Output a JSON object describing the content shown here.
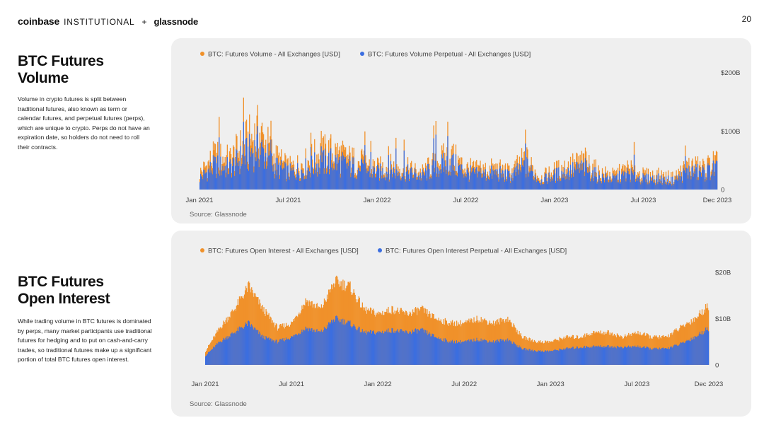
{
  "header": {
    "logo_coinbase": "coinbase",
    "logo_institutional": "INSTITUTIONAL",
    "logo_plus": "+",
    "logo_glassnode": "glassnode",
    "page_number": "20"
  },
  "sections": [
    {
      "title_line1": "BTC Futures",
      "title_line2": "Volume",
      "body": "Volume in crypto futures is split between traditional futures, also known as term or calendar futures, and perpetual futures (perps), which are unique to crypto. Perps do not have an expiration date, so holders do not need to roll their contracts."
    },
    {
      "title_line1": "BTC Futures",
      "title_line2": "Open Interest",
      "body": "While trading volume in BTC futures is dominated by perps, many market participants use traditional futures for hedging and to put on cash-and-carry trades, so traditional futures make up a significant portion of total BTC futures open interest."
    }
  ],
  "colors": {
    "orange": "#f0912a",
    "blue": "#3b6ee0"
  },
  "chart_data": [
    {
      "type": "area",
      "legend": [
        "BTC: Futures Volume - All Exchanges [USD]",
        "BTC: Futures Volume Perpetual - All Exchanges [USD]"
      ],
      "legend_position": "top-left",
      "source": "Source: Glassnode",
      "x_ticks": [
        "Jan 2021",
        "Jul 2021",
        "Jan 2022",
        "Jul 2022",
        "Jan 2023",
        "Jul 2023",
        "Dec 2023"
      ],
      "y_ticks": [
        {
          "v": 0,
          "label": "0"
        },
        {
          "v": 100,
          "label": "$100B"
        },
        {
          "v": 200,
          "label": "$200B"
        }
      ],
      "ylim": [
        0,
        225
      ],
      "grid": false,
      "x": [
        "2021-01",
        "2021-02",
        "2021-03",
        "2021-04",
        "2021-05",
        "2021-06",
        "2021-07",
        "2021-08",
        "2021-09",
        "2021-10",
        "2021-11",
        "2021-12",
        "2022-01",
        "2022-02",
        "2022-03",
        "2022-04",
        "2022-05",
        "2022-06",
        "2022-07",
        "2022-08",
        "2022-09",
        "2022-10",
        "2022-11",
        "2022-12",
        "2023-01",
        "2023-02",
        "2023-03",
        "2023-04",
        "2023-05",
        "2023-06",
        "2023-07",
        "2023-08",
        "2023-09",
        "2023-10",
        "2023-11",
        "2023-12"
      ],
      "series": [
        {
          "name": "BTC: Futures Volume - All Exchanges [USD]",
          "color": "#f0912a",
          "values": [
            35,
            70,
            62,
            95,
            120,
            70,
            45,
            55,
            75,
            80,
            65,
            55,
            45,
            50,
            45,
            35,
            60,
            70,
            45,
            40,
            45,
            35,
            65,
            25,
            40,
            50,
            60,
            35,
            30,
            45,
            30,
            30,
            25,
            50,
            45,
            60
          ]
        },
        {
          "name": "BTC: Futures Volume Perpetual - All Exchanges [USD]",
          "color": "#3b6ee0",
          "values": [
            25,
            50,
            45,
            70,
            90,
            50,
            35,
            42,
            55,
            60,
            50,
            42,
            35,
            40,
            35,
            28,
            48,
            55,
            35,
            30,
            35,
            27,
            50,
            18,
            30,
            38,
            45,
            26,
            22,
            33,
            22,
            22,
            18,
            38,
            35,
            45
          ]
        }
      ]
    },
    {
      "type": "area",
      "legend": [
        "BTC: Futures Open Interest - All Exchanges [USD]",
        "BTC: Futures Open Interest Perpetual - All Exchanges [USD]"
      ],
      "legend_position": "top-left",
      "source": "Source: Glassnode",
      "x_ticks": [
        "Jan 2021",
        "Jul 2021",
        "Jan 2022",
        "Jul 2022",
        "Jan 2023",
        "Jul 2023",
        "Dec 2023"
      ],
      "y_ticks": [
        {
          "v": 0,
          "label": "0"
        },
        {
          "v": 10,
          "label": "$10B"
        },
        {
          "v": 20,
          "label": "$20B"
        }
      ],
      "ylim": [
        -2,
        22
      ],
      "grid": false,
      "x": [
        "2021-01",
        "2021-02",
        "2021-03",
        "2021-04",
        "2021-05",
        "2021-06",
        "2021-07",
        "2021-08",
        "2021-09",
        "2021-10",
        "2021-11",
        "2021-12",
        "2022-01",
        "2022-02",
        "2022-03",
        "2022-04",
        "2022-05",
        "2022-06",
        "2022-07",
        "2022-08",
        "2022-09",
        "2022-10",
        "2022-11",
        "2022-12",
        "2023-01",
        "2023-02",
        "2023-03",
        "2023-04",
        "2023-05",
        "2023-06",
        "2023-07",
        "2023-08",
        "2023-09",
        "2023-10",
        "2023-11",
        "2023-12"
      ],
      "series": [
        {
          "name": "BTC: Futures Open Interest - All Exchanges [USD]",
          "color": "#f0912a",
          "values": [
            3,
            8,
            12,
            17,
            12,
            8,
            9,
            14,
            12,
            18,
            17,
            12,
            11,
            12,
            11,
            12,
            10,
            9,
            9,
            10,
            9,
            10,
            6,
            5,
            5,
            6,
            6,
            7,
            7,
            6,
            7,
            6,
            6,
            8,
            10,
            13
          ]
        },
        {
          "name": "BTC: Futures Open Interest Perpetual - All Exchanges [USD]",
          "color": "#3b6ee0",
          "values": [
            2,
            5,
            7,
            9,
            6,
            5,
            6,
            8,
            7,
            10,
            9,
            7,
            7,
            7.5,
            7,
            7.5,
            6,
            5,
            5,
            5.5,
            5,
            5.5,
            3.5,
            3,
            3,
            3.5,
            3.8,
            4,
            4,
            3.8,
            4,
            3.5,
            3.5,
            4.5,
            6,
            8
          ]
        }
      ]
    }
  ]
}
